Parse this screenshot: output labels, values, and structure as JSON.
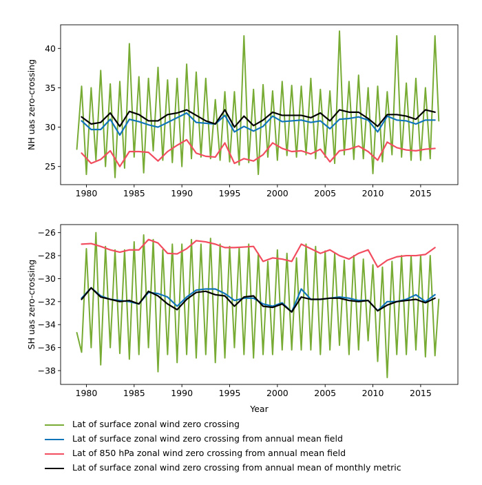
{
  "chart_data": [
    {
      "type": "line",
      "panel": "top",
      "title": "",
      "xlabel": "",
      "ylabel": "NH uas zero-crossing",
      "xlim": [
        1977.3,
        2018.9
      ],
      "ylim": [
        22.7,
        43.0
      ],
      "xticks": [
        1980,
        1985,
        1990,
        1995,
        2000,
        2005,
        2010,
        2015
      ],
      "xtick_labels": [
        "1980",
        "1985",
        "1990",
        "1995",
        "2000",
        "2005",
        "2010",
        "2015"
      ],
      "yticks": [
        25,
        30,
        35,
        40
      ],
      "ytick_labels": [
        "25",
        "30",
        "35",
        "40"
      ],
      "grid": false,
      "series": [
        {
          "name": "Lat of surface zonal wind zero crossing",
          "color": "#77ab34",
          "kind": "monthly",
          "x": [
            1979.0,
            1979.5,
            1980.0,
            1980.5,
            1981.0,
            1981.5,
            1982.0,
            1982.5,
            1983.0,
            1983.5,
            1984.0,
            1984.5,
            1985.0,
            1985.5,
            1986.0,
            1986.5,
            1987.0,
            1987.5,
            1988.0,
            1988.5,
            1989.0,
            1989.5,
            1990.0,
            1990.5,
            1991.0,
            1991.5,
            1992.0,
            1992.5,
            1993.0,
            1993.5,
            1994.0,
            1994.5,
            1995.0,
            1995.5,
            1996.0,
            1996.5,
            1997.0,
            1997.5,
            1998.0,
            1998.5,
            1999.0,
            1999.5,
            2000.0,
            2000.5,
            2001.0,
            2001.5,
            2002.0,
            2002.5,
            2003.0,
            2003.5,
            2004.0,
            2004.5,
            2005.0,
            2005.5,
            2006.0,
            2006.5,
            2007.0,
            2007.5,
            2008.0,
            2008.5,
            2009.0,
            2009.5,
            2010.0,
            2010.5,
            2011.0,
            2011.5,
            2012.0,
            2012.5,
            2013.0,
            2013.5,
            2014.0,
            2014.5,
            2015.0,
            2015.5,
            2016.0,
            2016.5,
            2016.9
          ],
          "values": [
            27.2,
            35.2,
            24.0,
            35.0,
            25.8,
            37.2,
            25.0,
            35.5,
            23.6,
            35.8,
            24.8,
            40.6,
            26.2,
            36.4,
            24.2,
            36.2,
            27.0,
            37.6,
            25.8,
            36.0,
            25.5,
            36.2,
            25.0,
            38.0,
            26.0,
            37.0,
            26.2,
            36.2,
            26.0,
            33.5,
            25.8,
            34.5,
            25.6,
            34.5,
            25.2,
            41.6,
            25.5,
            34.8,
            24.0,
            35.4,
            26.2,
            34.6,
            25.8,
            35.8,
            26.4,
            35.3,
            26.2,
            35.2,
            26.5,
            36.2,
            26.0,
            34.8,
            26.2,
            34.6,
            25.4,
            42.2,
            26.5,
            35.8,
            25.9,
            36.6,
            26.0,
            35.0,
            24.1,
            35.2,
            25.6,
            34.5,
            26.5,
            41.6,
            26.2,
            35.6,
            25.8,
            36.2,
            25.8,
            35.0,
            26.0,
            41.6,
            30.8
          ]
        },
        {
          "name": "Lat of surface zonal wind zero crossing from annual mean field",
          "color": "#0f74b8",
          "kind": "annual",
          "x": [
            1979.5,
            1980.5,
            1981.5,
            1982.5,
            1983.5,
            1984.5,
            1985.5,
            1986.5,
            1987.5,
            1988.5,
            1989.5,
            1990.5,
            1991.5,
            1992.5,
            1993.5,
            1994.5,
            1995.5,
            1996.5,
            1997.5,
            1998.5,
            1999.5,
            2000.5,
            2001.5,
            2002.5,
            2003.5,
            2004.5,
            2005.5,
            2006.5,
            2007.5,
            2008.5,
            2009.5,
            2010.5,
            2011.5,
            2012.5,
            2013.5,
            2014.5,
            2015.5,
            2016.5
          ],
          "values": [
            30.8,
            29.7,
            29.7,
            31.0,
            29.0,
            31.0,
            30.7,
            30.3,
            30.0,
            30.6,
            31.2,
            31.8,
            30.6,
            30.5,
            30.4,
            31.5,
            29.4,
            30.1,
            29.5,
            30.1,
            31.4,
            30.7,
            30.8,
            30.9,
            30.6,
            30.8,
            29.8,
            31.0,
            31.1,
            31.3,
            30.9,
            29.4,
            31.4,
            30.9,
            30.8,
            30.4,
            30.9,
            30.9
          ]
        },
        {
          "name": "Lat of 850 hPa zonal wind zero crossing from annual mean field",
          "color": "#f24c5f",
          "kind": "annual",
          "x": [
            1979.5,
            1980.5,
            1981.5,
            1982.5,
            1983.5,
            1984.5,
            1985.5,
            1986.5,
            1987.5,
            1988.5,
            1989.5,
            1990.5,
            1991.5,
            1992.5,
            1993.5,
            1994.5,
            1995.5,
            1996.5,
            1997.5,
            1998.5,
            1999.5,
            2000.5,
            2001.5,
            2002.5,
            2003.5,
            2004.5,
            2005.5,
            2006.5,
            2007.5,
            2008.5,
            2009.5,
            2010.5,
            2011.5,
            2012.5,
            2013.5,
            2014.5,
            2015.5,
            2016.5
          ],
          "values": [
            26.7,
            25.4,
            25.9,
            27.0,
            25.0,
            26.9,
            26.9,
            26.8,
            25.7,
            26.9,
            27.7,
            28.4,
            26.7,
            26.3,
            26.2,
            28.0,
            25.4,
            26.0,
            25.7,
            26.5,
            28.0,
            27.3,
            26.9,
            27.0,
            26.6,
            27.2,
            25.6,
            27.0,
            27.2,
            27.6,
            26.9,
            25.8,
            28.1,
            27.4,
            27.1,
            27.0,
            27.2,
            27.3
          ]
        },
        {
          "name": "Lat of surface zonal wind zero crossing from annual mean of monthly metric",
          "color": "#000000",
          "kind": "annual",
          "x": [
            1979.5,
            1980.5,
            1981.5,
            1982.5,
            1983.5,
            1984.5,
            1985.5,
            1986.5,
            1987.5,
            1988.5,
            1989.5,
            1990.5,
            1991.5,
            1992.5,
            1993.5,
            1994.5,
            1995.5,
            1996.5,
            1997.5,
            1998.5,
            1999.5,
            2000.5,
            2001.5,
            2002.5,
            2003.5,
            2004.5,
            2005.5,
            2006.5,
            2007.5,
            2008.5,
            2009.5,
            2010.5,
            2011.5,
            2012.5,
            2013.5,
            2014.5,
            2015.5,
            2016.5
          ],
          "values": [
            31.3,
            30.4,
            30.6,
            31.8,
            30.1,
            32.0,
            31.6,
            30.8,
            30.8,
            31.6,
            31.8,
            32.2,
            31.5,
            30.8,
            30.4,
            32.2,
            30.0,
            31.4,
            30.2,
            30.9,
            31.9,
            31.5,
            31.5,
            31.5,
            31.2,
            31.8,
            30.8,
            32.2,
            31.9,
            31.9,
            31.1,
            30.1,
            31.6,
            31.6,
            31.4,
            31.0,
            32.2,
            31.9
          ]
        }
      ]
    },
    {
      "type": "line",
      "panel": "bottom",
      "title": "",
      "xlabel": "Year",
      "ylabel": "SH uas zero-crossing",
      "xlim": [
        1977.3,
        2018.9
      ],
      "ylim": [
        -39.2,
        -25.3
      ],
      "xticks": [
        1980,
        1985,
        1990,
        1995,
        2000,
        2005,
        2010,
        2015
      ],
      "xtick_labels": [
        "1980",
        "1985",
        "1990",
        "1995",
        "2000",
        "2005",
        "2010",
        "2015"
      ],
      "yticks": [
        -38,
        -36,
        -34,
        -32,
        -30,
        -28,
        -26
      ],
      "ytick_labels": [
        "−38",
        "−36",
        "−34",
        "−32",
        "−30",
        "−28",
        "−26"
      ],
      "grid": false,
      "series": [
        {
          "name": "Lat of surface zonal wind zero crossing",
          "color": "#77ab34",
          "kind": "monthly",
          "x": [
            1979.0,
            1979.5,
            1980.0,
            1980.5,
            1981.0,
            1981.5,
            1982.0,
            1982.5,
            1983.0,
            1983.5,
            1984.0,
            1984.5,
            1985.0,
            1985.5,
            1986.0,
            1986.5,
            1987.0,
            1987.5,
            1988.0,
            1988.5,
            1989.0,
            1989.5,
            1990.0,
            1990.5,
            1991.0,
            1991.5,
            1992.0,
            1992.5,
            1993.0,
            1993.5,
            1994.0,
            1994.5,
            1995.0,
            1995.5,
            1996.0,
            1996.5,
            1997.0,
            1997.5,
            1998.0,
            1998.5,
            1999.0,
            1999.5,
            2000.0,
            2000.5,
            2001.0,
            2001.5,
            2002.0,
            2002.5,
            2003.0,
            2003.5,
            2004.0,
            2004.5,
            2005.0,
            2005.5,
            2006.0,
            2006.5,
            2007.0,
            2007.5,
            2008.0,
            2008.5,
            2009.0,
            2009.5,
            2010.0,
            2010.5,
            2011.0,
            2011.5,
            2012.0,
            2012.5,
            2013.0,
            2013.5,
            2014.0,
            2014.5,
            2015.0,
            2015.5,
            2016.0,
            2016.5,
            2016.9
          ],
          "values": [
            -34.7,
            -36.4,
            -27.4,
            -36.0,
            -26.0,
            -37.5,
            -27.2,
            -36.0,
            -27.5,
            -36.5,
            -27.5,
            -37.0,
            -26.8,
            -36.6,
            -26.2,
            -36.0,
            -26.6,
            -38.1,
            -27.5,
            -36.6,
            -27.0,
            -37.3,
            -27.0,
            -36.6,
            -26.6,
            -36.9,
            -27.0,
            -36.6,
            -26.5,
            -37.3,
            -27.0,
            -36.9,
            -27.2,
            -36.0,
            -27.3,
            -36.6,
            -27.0,
            -36.9,
            -27.8,
            -36.6,
            -28.5,
            -36.6,
            -27.5,
            -36.2,
            -27.8,
            -36.2,
            -28.2,
            -36.2,
            -27.0,
            -36.2,
            -27.2,
            -36.6,
            -27.6,
            -36.2,
            -27.8,
            -35.8,
            -28.4,
            -36.6,
            -28.0,
            -36.2,
            -28.3,
            -35.4,
            -28.8,
            -37.2,
            -29.0,
            -38.6,
            -28.5,
            -36.6,
            -28.0,
            -36.6,
            -28.0,
            -36.2,
            -28.0,
            -36.8,
            -28.0,
            -36.7,
            -31.8
          ]
        },
        {
          "name": "Lat of surface zonal wind zero crossing from annual mean field",
          "color": "#0f74b8",
          "kind": "annual",
          "x": [
            1979.5,
            1980.5,
            1981.5,
            1982.5,
            1983.5,
            1984.5,
            1985.5,
            1986.5,
            1987.5,
            1988.5,
            1989.5,
            1990.5,
            1991.5,
            1992.5,
            1993.5,
            1994.5,
            1995.5,
            1996.5,
            1997.5,
            1998.5,
            1999.5,
            2000.5,
            2001.5,
            2002.5,
            2003.5,
            2004.5,
            2005.5,
            2006.5,
            2007.5,
            2008.5,
            2009.5,
            2010.5,
            2011.5,
            2012.5,
            2013.5,
            2014.5,
            2015.5,
            2016.5
          ],
          "values": [
            -31.7,
            -30.8,
            -31.5,
            -31.8,
            -31.9,
            -32.0,
            -32.2,
            -31.2,
            -31.3,
            -31.6,
            -32.4,
            -31.6,
            -31.0,
            -30.9,
            -30.9,
            -31.3,
            -31.9,
            -31.7,
            -31.7,
            -32.2,
            -32.4,
            -32.1,
            -32.9,
            -30.9,
            -31.8,
            -31.8,
            -31.7,
            -31.6,
            -31.7,
            -31.9,
            -31.9,
            -32.8,
            -32.0,
            -32.0,
            -31.8,
            -31.4,
            -32.0,
            -31.4
          ]
        },
        {
          "name": "Lat of 850 hPa zonal wind zero crossing from annual mean field",
          "color": "#f24c5f",
          "kind": "annual",
          "x": [
            1979.5,
            1980.5,
            1981.5,
            1982.5,
            1983.5,
            1984.5,
            1985.5,
            1986.5,
            1987.5,
            1988.5,
            1989.5,
            1990.5,
            1991.5,
            1992.5,
            1993.5,
            1994.5,
            1995.5,
            1996.5,
            1997.5,
            1998.5,
            1999.5,
            2000.5,
            2001.5,
            2002.5,
            2003.5,
            2004.5,
            2005.5,
            2006.5,
            2007.5,
            2008.5,
            2009.5,
            2010.5,
            2011.5,
            2012.5,
            2013.5,
            2014.5,
            2015.5,
            2016.5
          ],
          "values": [
            -27.0,
            -26.95,
            -27.2,
            -27.5,
            -27.7,
            -27.5,
            -27.5,
            -26.6,
            -26.9,
            -27.8,
            -27.85,
            -27.4,
            -26.7,
            -26.8,
            -27.0,
            -27.3,
            -27.3,
            -27.25,
            -27.2,
            -28.5,
            -28.2,
            -28.3,
            -28.5,
            -27.0,
            -27.4,
            -27.8,
            -27.5,
            -28.0,
            -28.3,
            -27.8,
            -27.5,
            -29.0,
            -28.4,
            -28.1,
            -28.0,
            -28.0,
            -27.9,
            -27.3
          ]
        },
        {
          "name": "Lat of surface zonal wind zero crossing from annual mean of monthly metric",
          "color": "#000000",
          "kind": "annual",
          "x": [
            1979.5,
            1980.5,
            1981.5,
            1982.5,
            1983.5,
            1984.5,
            1985.5,
            1986.5,
            1987.5,
            1988.5,
            1989.5,
            1990.5,
            1991.5,
            1992.5,
            1993.5,
            1994.5,
            1995.5,
            1996.5,
            1997.5,
            1998.5,
            1999.5,
            2000.5,
            2001.5,
            2002.5,
            2003.5,
            2004.5,
            2005.5,
            2006.5,
            2007.5,
            2008.5,
            2009.5,
            2010.5,
            2011.5,
            2012.5,
            2013.5,
            2014.5,
            2015.5,
            2016.5
          ],
          "values": [
            -31.8,
            -30.8,
            -31.6,
            -31.8,
            -32.0,
            -31.9,
            -32.2,
            -31.1,
            -31.5,
            -32.2,
            -32.7,
            -31.8,
            -31.2,
            -31.1,
            -31.4,
            -31.5,
            -32.4,
            -31.6,
            -31.5,
            -32.4,
            -32.5,
            -32.2,
            -32.9,
            -31.6,
            -31.8,
            -31.8,
            -31.7,
            -31.7,
            -31.9,
            -32.0,
            -31.9,
            -32.8,
            -32.3,
            -32.0,
            -31.9,
            -31.8,
            -32.1,
            -31.7
          ]
        }
      ]
    }
  ],
  "legend": {
    "placement": "bottom-left, below plots",
    "entries": [
      {
        "label": "Lat of surface zonal wind zero crossing",
        "color": "#77ab34"
      },
      {
        "label": "Lat of surface zonal wind zero crossing from annual mean field",
        "color": "#0f74b8"
      },
      {
        "label": "Lat of 850 hPa zonal wind zero crossing from annual mean field",
        "color": "#f24c5f"
      },
      {
        "label": "Lat of surface zonal wind zero crossing from annual mean of monthly metric",
        "color": "#000000"
      }
    ]
  }
}
